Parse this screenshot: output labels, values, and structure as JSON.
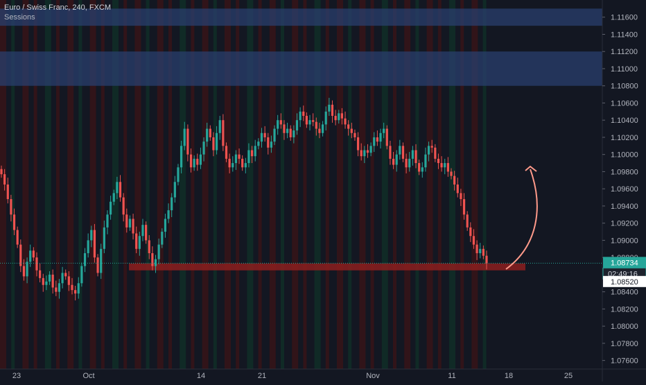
{
  "header": {
    "symbol_title": "Euro / Swiss Franc, 240, FXCM",
    "study_label": "Sessions"
  },
  "colors": {
    "background": "#131722",
    "up_candle": "#26a69a",
    "down_candle": "#ef5350",
    "zone_blue": "#2a3f6e",
    "support_zone": "#8c1e1e",
    "session_red": "#4a1212",
    "session_green": "#0f3a2a",
    "arrow": "#ff9a8a",
    "price_tag_bg": "#26a69a",
    "price_line": "#26a69a"
  },
  "chart_data": {
    "type": "candlestick",
    "y_axis": {
      "min": 1.075,
      "max": 1.118,
      "ticks": [
        "1.07600",
        "1.07800",
        "1.08000",
        "1.08200",
        "1.08400",
        "1.08520",
        "1.08800",
        "1.09000",
        "1.09200",
        "1.09400",
        "1.09600",
        "1.09800",
        "1.10000",
        "1.10200",
        "1.10400",
        "1.10600",
        "1.10800",
        "1.11000",
        "1.11200",
        "1.11400",
        "1.11600"
      ]
    },
    "x_axis": {
      "ticks": [
        "23",
        "Oct",
        "14",
        "21",
        "Nov",
        "11",
        "18",
        "25"
      ]
    },
    "current_price": "1.08734",
    "countdown": "02:49:16",
    "level_tag": "1.08520",
    "zones": [
      {
        "name": "upper-resistance",
        "from": 1.115,
        "to": 1.117
      },
      {
        "name": "lower-resistance",
        "from": 1.108,
        "to": 1.112
      },
      {
        "name": "support",
        "from": 1.0865,
        "to": 1.0873
      }
    ],
    "close_series": [
      1.0977,
      1.0965,
      1.0948,
      1.093,
      1.0912,
      1.0895,
      1.087,
      1.0858,
      1.0875,
      1.0888,
      1.088,
      1.0865,
      1.0856,
      1.0848,
      1.0852,
      1.086,
      1.0845,
      1.084,
      1.085,
      1.0862,
      1.0858,
      1.0848,
      1.0842,
      1.0838,
      1.085,
      1.087,
      1.0885,
      1.09,
      1.0912,
      1.088,
      1.0862,
      1.089,
      1.0915,
      1.093,
      1.0945,
      1.0955,
      1.0968,
      1.095,
      1.093,
      1.0915,
      1.0925,
      1.0908,
      1.089,
      1.0905,
      1.0918,
      1.09,
      1.0885,
      1.087,
      1.0878,
      1.0895,
      1.091,
      1.0925,
      1.0935,
      1.095,
      1.0968,
      1.0985,
      1.101,
      1.103,
      1.1,
      1.0985,
      1.0995,
      1.0988,
      1.1,
      1.1015,
      1.103,
      1.102,
      1.1005,
      1.1025,
      1.104,
      1.101,
      1.0995,
      1.0985,
      1.099,
      1.1,
      1.0995,
      1.0985,
      1.099,
      1.1005,
      1.0998,
      1.101,
      1.1015,
      1.1025,
      1.102,
      1.1008,
      1.1015,
      1.103,
      1.104,
      1.1035,
      1.1025,
      1.103,
      1.102,
      1.1028,
      1.104,
      1.105,
      1.1045,
      1.1035,
      1.104,
      1.1038,
      1.103,
      1.1025,
      1.1035,
      1.105,
      1.1058,
      1.1045,
      1.104,
      1.1048,
      1.1042,
      1.1035,
      1.103,
      1.1025,
      1.102,
      1.1005,
      1.0998,
      1.1005,
      1.1002,
      1.101,
      1.102,
      1.1015,
      1.1025,
      1.103,
      1.101,
      1.0995,
      1.0988,
      1.1,
      1.101,
      1.0995,
      1.0985,
      1.0995,
      1.1005,
      1.099,
      1.098,
      1.0985,
      1.1,
      1.101,
      1.1008,
      1.0995,
      1.099,
      1.0985,
      1.099,
      1.098,
      1.0975,
      1.0965,
      1.0955,
      1.0948,
      1.093,
      1.0915,
      1.0905,
      1.0895,
      1.0885,
      1.089,
      1.0882,
      1.0873
    ]
  }
}
